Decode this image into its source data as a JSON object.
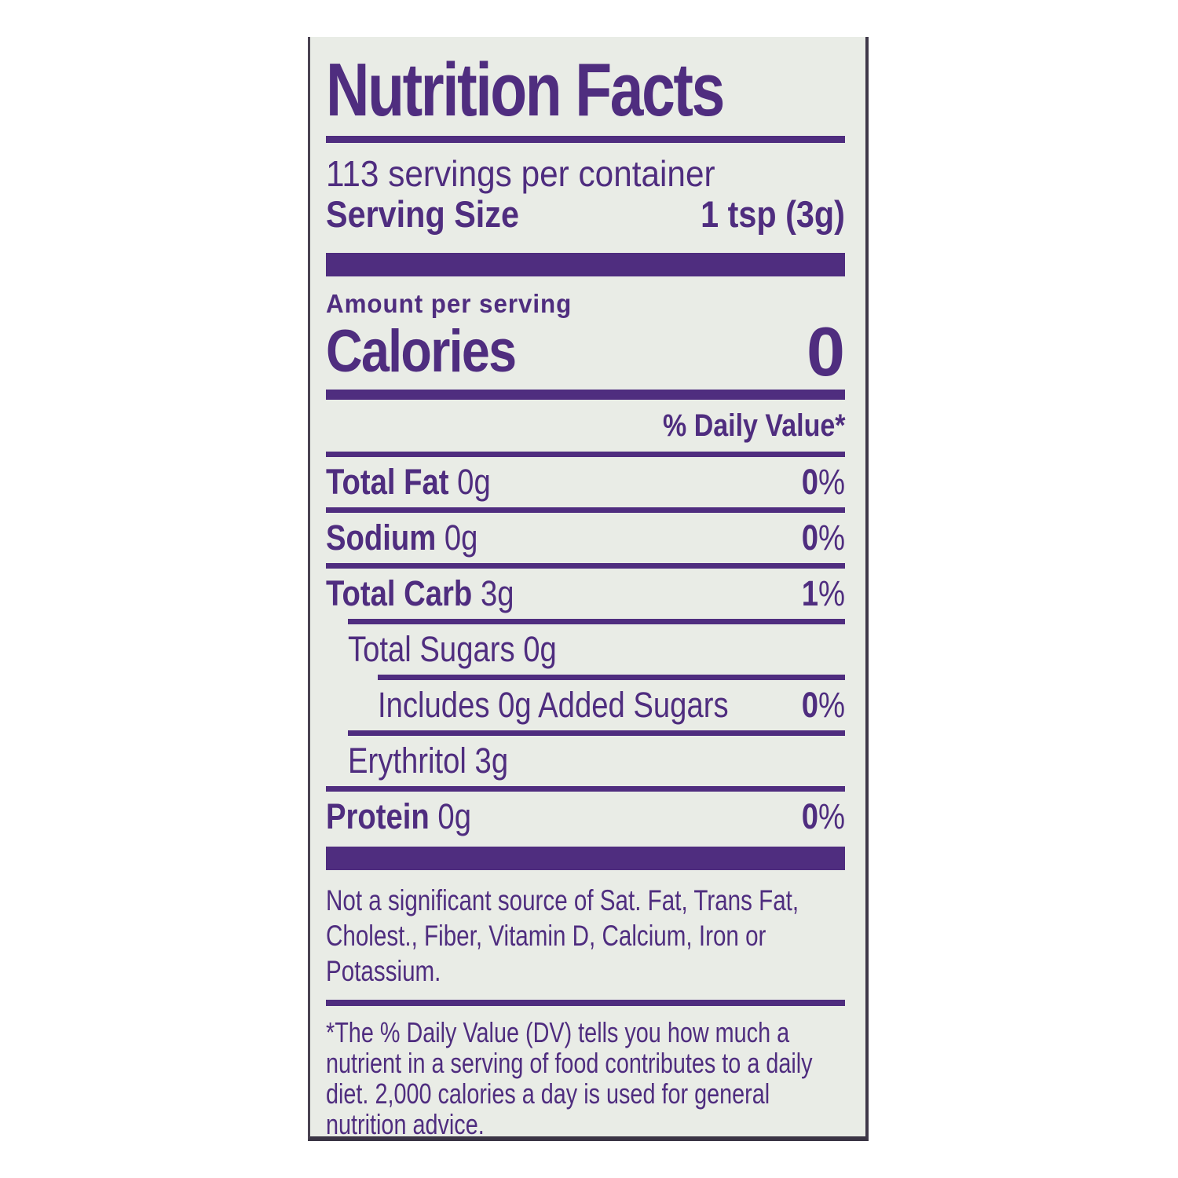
{
  "colors": {
    "purple": "#4f2d7f",
    "label_bg": "#e9ece6",
    "border": "#4a4352"
  },
  "label": {
    "title": "Nutrition Facts",
    "servings_per_container": "113 servings per container",
    "serving_size": {
      "label": "Serving Size",
      "value": "1 tsp (3g)"
    },
    "amount_per_serving": "Amount per serving",
    "calories": {
      "label": "Calories",
      "value": "0"
    },
    "daily_value_header": "% Daily Value*",
    "rows": [
      {
        "name": "Total Fat",
        "amount": "0g",
        "dv": "0",
        "pct": "%"
      },
      {
        "name": "Sodium",
        "amount": "0g",
        "dv": "0",
        "pct": "%"
      },
      {
        "name": "Total Carb",
        "amount": "3g",
        "dv": "1",
        "pct": "%"
      },
      {
        "name": "Total Sugars",
        "amount": "0g",
        "dv": "",
        "pct": ""
      },
      {
        "name": "Includes 0g Added Sugars",
        "amount": "",
        "dv": "0",
        "pct": "%"
      },
      {
        "name": "Erythritol",
        "amount": "3g",
        "dv": "",
        "pct": ""
      },
      {
        "name": "Protein",
        "amount": "0g",
        "dv": "0",
        "pct": "%"
      }
    ],
    "not_significant_lines": [
      "Not a significant source of Sat. Fat, Trans Fat,",
      "Cholest., Fiber, Vitamin D, Calcium, Iron or",
      "Potassium."
    ],
    "footnote_lines": [
      "*The % Daily Value (DV) tells you how much a",
      "nutrient in a serving of food contributes to a daily",
      "diet. 2,000 calories a day is used for general",
      "nutrition advice."
    ]
  }
}
